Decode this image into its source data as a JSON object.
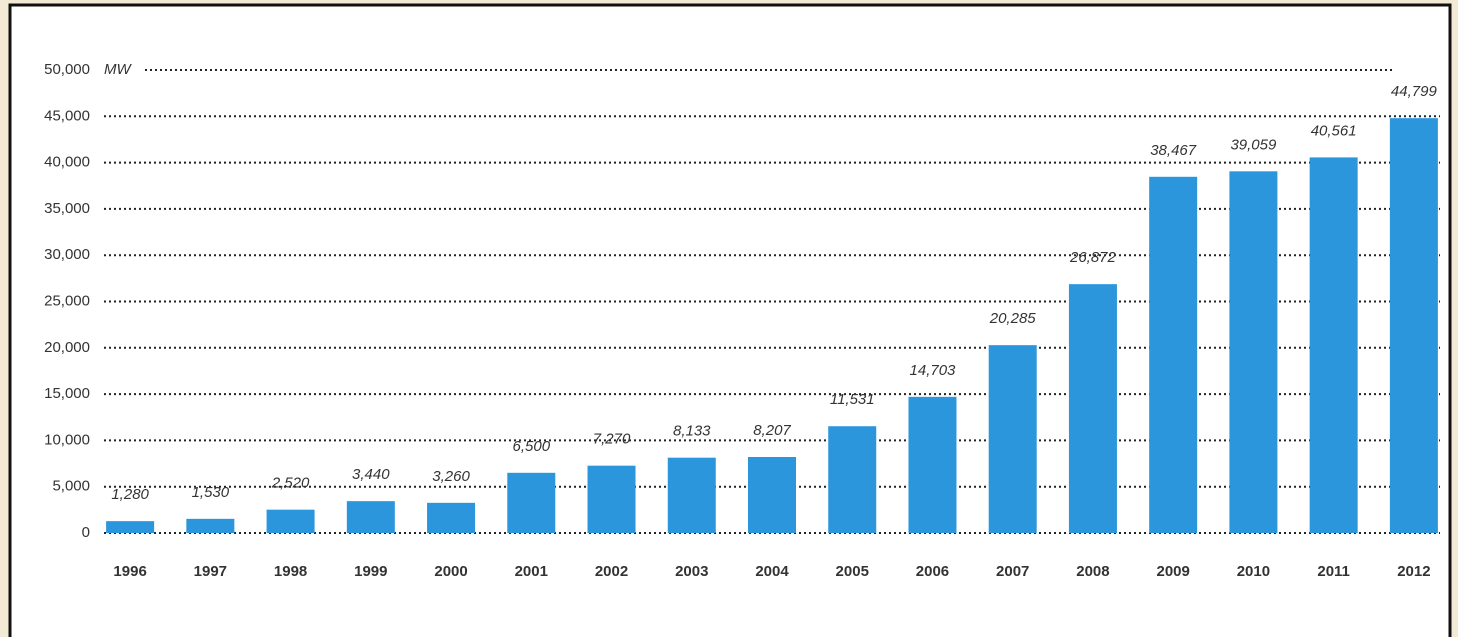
{
  "chart_data": {
    "type": "bar",
    "ylabel": "MW",
    "categories": [
      "1996",
      "1997",
      "1998",
      "1999",
      "2000",
      "2001",
      "2002",
      "2003",
      "2004",
      "2005",
      "2006",
      "2007",
      "2008",
      "2009",
      "2010",
      "2011",
      "2012"
    ],
    "values": [
      1280,
      1530,
      2520,
      3440,
      3260,
      6500,
      7270,
      8133,
      8207,
      11531,
      14703,
      20285,
      26872,
      38467,
      39059,
      40561,
      44799
    ],
    "value_labels": [
      "1,280",
      "1,530",
      "2,520",
      "3,440",
      "3,260",
      "6,500",
      "7,270",
      "8,133",
      "8,207",
      "11,531",
      "14,703",
      "20,285",
      "26,872",
      "38,467",
      "39,059",
      "40,561",
      "44,799"
    ],
    "color": "#2b96dc",
    "ylim": [
      0,
      50000
    ],
    "yticks": [
      0,
      {
        "value": 5000,
        "label": "5,000"
      },
      {
        "value": 10000,
        "label": "10,000"
      },
      {
        "value": 15000,
        "label": "15,000"
      },
      {
        "value": 20000,
        "label": "20,000"
      },
      {
        "value": 25000,
        "label": "25,000"
      },
      {
        "value": 30000,
        "label": "30,000"
      },
      {
        "value": 35000,
        "label": "35,000"
      },
      {
        "value": 40000,
        "label": "40,000"
      },
      {
        "value": 45000,
        "label": "45,000"
      },
      {
        "value": 50000,
        "label": "50,000"
      }
    ],
    "grid": true
  }
}
